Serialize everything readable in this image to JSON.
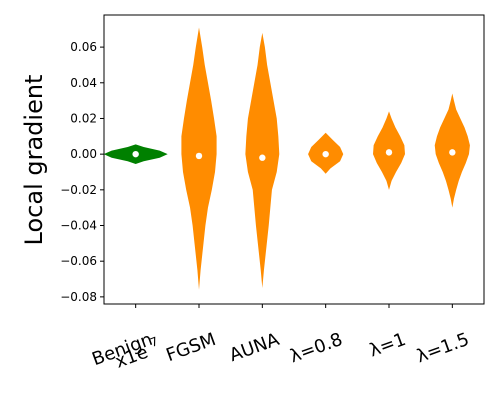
{
  "chart_data": {
    "type": "violin",
    "ylabel": "Local gradient",
    "ylim": [
      -0.084,
      0.078
    ],
    "yticks": [
      0.06,
      0.04,
      0.02,
      0.0,
      -0.02,
      -0.04,
      -0.06,
      -0.08
    ],
    "ytick_labels": [
      "0.06",
      "0.04",
      "0.02",
      "0.00",
      "−0.02",
      "−0.04",
      "−0.06",
      "−0.08"
    ],
    "categories": [
      "Benign",
      "FGSM",
      "AUNA",
      "λ=0.8",
      "λ=1",
      "λ=1.5"
    ],
    "x_multiplier_label": "x1e",
    "x_multiplier_exp": "7",
    "grid": false,
    "colors": {
      "benign": "#008000",
      "adversarial": "#ff8c00",
      "median": "#ffffff"
    },
    "series": [
      {
        "color": "#008000",
        "median": 0.0,
        "profile": [
          [
            -0.0055,
            0.0
          ],
          [
            -0.004,
            0.25
          ],
          [
            -0.002,
            0.75
          ],
          [
            0.0,
            1.0
          ],
          [
            0.002,
            0.75
          ],
          [
            0.004,
            0.25
          ],
          [
            0.0055,
            0.0
          ]
        ]
      },
      {
        "color": "#ff8c00",
        "median": -0.001,
        "profile": [
          [
            -0.076,
            0.0
          ],
          [
            -0.065,
            0.05
          ],
          [
            -0.05,
            0.14
          ],
          [
            -0.04,
            0.2
          ],
          [
            -0.03,
            0.28
          ],
          [
            -0.02,
            0.4
          ],
          [
            -0.01,
            0.5
          ],
          [
            0.0,
            0.55
          ],
          [
            0.01,
            0.55
          ],
          [
            0.02,
            0.47
          ],
          [
            0.03,
            0.38
          ],
          [
            0.04,
            0.28
          ],
          [
            0.05,
            0.18
          ],
          [
            0.06,
            0.1
          ],
          [
            0.071,
            0.0
          ]
        ]
      },
      {
        "color": "#ff8c00",
        "median": -0.002,
        "profile": [
          [
            -0.075,
            0.0
          ],
          [
            -0.065,
            0.05
          ],
          [
            -0.05,
            0.14
          ],
          [
            -0.04,
            0.2
          ],
          [
            -0.03,
            0.25
          ],
          [
            -0.02,
            0.3
          ],
          [
            -0.01,
            0.45
          ],
          [
            0.0,
            0.53
          ],
          [
            0.01,
            0.5
          ],
          [
            0.02,
            0.45
          ],
          [
            0.03,
            0.35
          ],
          [
            0.04,
            0.25
          ],
          [
            0.05,
            0.15
          ],
          [
            0.06,
            0.08
          ],
          [
            0.068,
            0.0
          ]
        ]
      },
      {
        "color": "#ff8c00",
        "median": 0.0,
        "profile": [
          [
            -0.011,
            0.0
          ],
          [
            -0.008,
            0.15
          ],
          [
            -0.004,
            0.45
          ],
          [
            0.0,
            0.55
          ],
          [
            0.004,
            0.45
          ],
          [
            0.008,
            0.22
          ],
          [
            0.012,
            0.0
          ]
        ]
      },
      {
        "color": "#ff8c00",
        "median": 0.001,
        "profile": [
          [
            -0.02,
            0.0
          ],
          [
            -0.015,
            0.08
          ],
          [
            -0.01,
            0.22
          ],
          [
            -0.005,
            0.38
          ],
          [
            0.0,
            0.5
          ],
          [
            0.005,
            0.48
          ],
          [
            0.01,
            0.35
          ],
          [
            0.015,
            0.2
          ],
          [
            0.02,
            0.08
          ],
          [
            0.024,
            0.0
          ]
        ]
      },
      {
        "color": "#ff8c00",
        "median": 0.001,
        "profile": [
          [
            -0.03,
            0.0
          ],
          [
            -0.025,
            0.05
          ],
          [
            -0.02,
            0.12
          ],
          [
            -0.015,
            0.2
          ],
          [
            -0.01,
            0.3
          ],
          [
            -0.005,
            0.42
          ],
          [
            0.0,
            0.52
          ],
          [
            0.005,
            0.55
          ],
          [
            0.01,
            0.48
          ],
          [
            0.015,
            0.38
          ],
          [
            0.02,
            0.25
          ],
          [
            0.025,
            0.12
          ],
          [
            0.03,
            0.05
          ],
          [
            0.034,
            0.0
          ]
        ]
      }
    ]
  }
}
